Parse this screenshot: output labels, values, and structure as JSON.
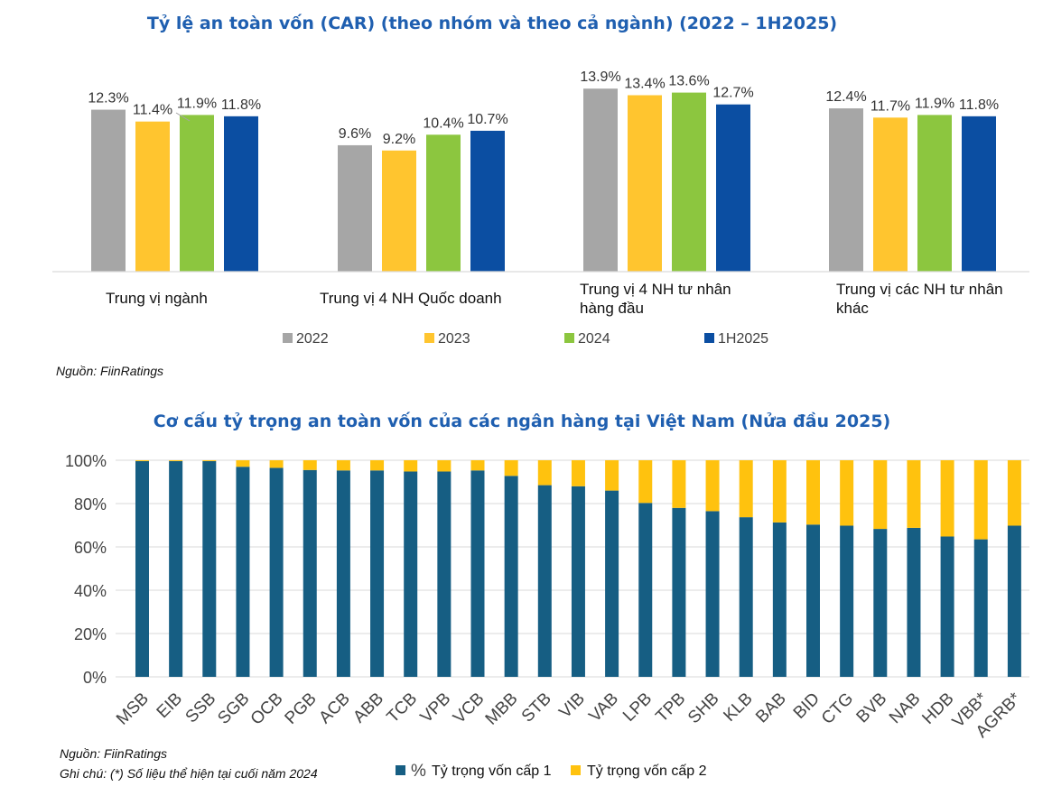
{
  "chart_data": [
    {
      "type": "bar",
      "title": "Tỷ lệ an toàn vốn (CAR) (theo nhóm và theo cả ngành) (2022 – 1H2025)",
      "categories": [
        "Trung vị ngành",
        "Trung vị 4 NH Quốc doanh",
        "Trung vị 4 NH tư nhân hàng đầu",
        "Trung vị các NH tư nhân khác"
      ],
      "category_lines": [
        [
          "Trung vị ngành"
        ],
        [
          "Trung vị 4 NH Quốc doanh"
        ],
        [
          "Trung vị 4 NH tư nhân",
          "hàng đầu"
        ],
        [
          "Trung vị các NH tư nhân",
          "khác"
        ]
      ],
      "series": [
        {
          "name": "2022",
          "color": "#a6a6a6",
          "values": [
            12.3,
            9.6,
            13.9,
            12.4
          ],
          "labels": [
            "12.3%",
            "9.6%",
            "13.9%",
            "12.4%"
          ]
        },
        {
          "name": "2023",
          "color": "#ffc52f",
          "values": [
            11.4,
            9.2,
            13.4,
            11.7
          ],
          "labels": [
            "11.4%",
            "9.2%",
            "13.4%",
            "11.7%"
          ]
        },
        {
          "name": "2024",
          "color": "#8cc63f",
          "values": [
            11.9,
            10.4,
            13.6,
            11.9
          ],
          "labels": [
            "11.9%",
            "10.4%",
            "13.6%",
            "11.9%"
          ]
        },
        {
          "name": "1H2025",
          "color": "#0b4ea2",
          "values": [
            11.8,
            10.7,
            12.7,
            11.8
          ],
          "labels": [
            "11.8%",
            "10.7%",
            "12.7%",
            "11.8%"
          ]
        }
      ],
      "ylim": [
        0,
        14.6
      ],
      "legend_position": "bottom",
      "source": "Nguồn: FiinRatings"
    },
    {
      "type": "bar",
      "stacked": true,
      "title": "Cơ cấu tỷ trọng an toàn vốn của các ngân hàng tại Việt Nam (Nửa đầu 2025)",
      "categories": [
        "MSB",
        "EIB",
        "SSB",
        "SGB",
        "OCB",
        "PGB",
        "ACB",
        "ABB",
        "TCB",
        "VPB",
        "VCB",
        "MBB",
        "STB",
        "VIB",
        "VAB",
        "LPB",
        "TPB",
        "SHB",
        "KLB",
        "BAB",
        "BID",
        "CTG",
        "BVB",
        "NAB",
        "HDB",
        "VBB*",
        "AGRB*"
      ],
      "series": [
        {
          "name": "Tỷ trọng vốn cấp 1",
          "color": "#165e83",
          "values": [
            99.6,
            99.6,
            99.6,
            97,
            96.5,
            95.5,
            95.3,
            95.3,
            94.8,
            94.8,
            95.3,
            92.8,
            88.5,
            88,
            86,
            80.3,
            78,
            76.5,
            73.7,
            71.3,
            70.3,
            69.8,
            68.3,
            68.8,
            64.8,
            63.5,
            69.8
          ]
        },
        {
          "name": "Tỷ trọng vốn cấp 2",
          "color": "#ffc20e",
          "values": [
            0.4,
            0.4,
            0.4,
            3,
            3.5,
            4.5,
            4.7,
            4.7,
            5.2,
            5.2,
            4.7,
            7.2,
            11.5,
            12,
            14,
            19.7,
            22,
            23.5,
            26.3,
            28.7,
            29.7,
            30.2,
            31.7,
            31.2,
            35.2,
            36.5,
            30.2
          ]
        }
      ],
      "ylim": [
        0,
        100
      ],
      "yticks": [
        "0%",
        "20%",
        "40%",
        "60%",
        "80%",
        "100%"
      ],
      "legend_prefix": "%",
      "legend_position": "bottom",
      "source": "Nguồn: FiinRatings",
      "note": "Ghi chú: (*) Số liệu thể hiện tại cuối năm 2024"
    }
  ]
}
